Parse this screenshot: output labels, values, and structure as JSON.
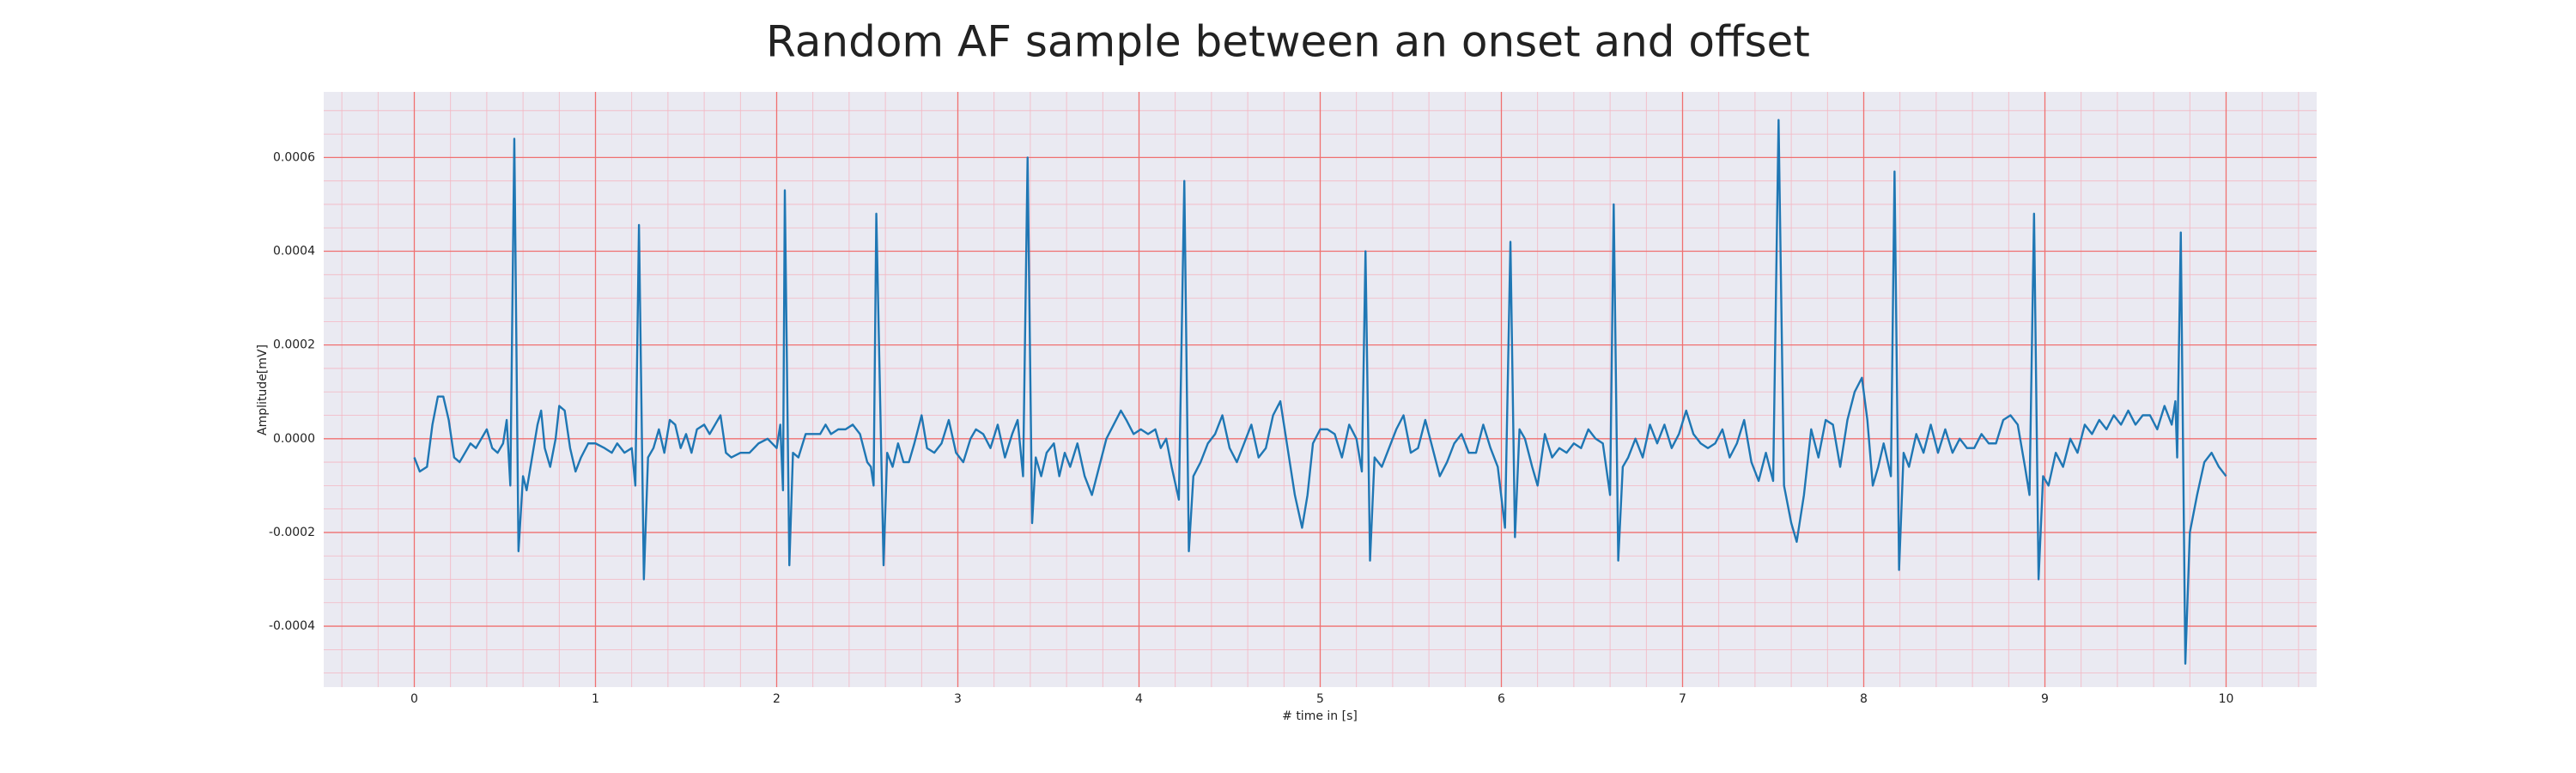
{
  "chart_data": {
    "type": "line",
    "title": "Random AF sample between an onset and offset",
    "xlabel": "# time in [s]",
    "ylabel": "Amplitude[mV]",
    "color": "#1f77b4",
    "grid": true,
    "minor_grid": true,
    "xlim": [
      -0.5,
      10.5
    ],
    "ylim": [
      -0.00053,
      0.00074
    ],
    "xticks": [
      0,
      1,
      2,
      3,
      4,
      5,
      6,
      7,
      8,
      9,
      10
    ],
    "yticks": [
      -0.0004,
      -0.0002,
      {
        "value": 0,
        "label": "0.0000"
      },
      0.0002,
      0.0004,
      0.0006
    ],
    "x": [
      0.0,
      0.03,
      0.07,
      0.1,
      0.13,
      0.16,
      0.19,
      0.22,
      0.25,
      0.28,
      0.31,
      0.34,
      0.37,
      0.4,
      0.43,
      0.46,
      0.49,
      0.51,
      0.53,
      0.552,
      0.575,
      0.6,
      0.62,
      0.65,
      0.68,
      0.7,
      0.72,
      0.75,
      0.78,
      0.8,
      0.83,
      0.86,
      0.89,
      0.92,
      0.96,
      1.0,
      1.05,
      1.09,
      1.12,
      1.16,
      1.2,
      1.22,
      1.24,
      1.267,
      1.29,
      1.32,
      1.35,
      1.38,
      1.41,
      1.44,
      1.47,
      1.5,
      1.53,
      1.56,
      1.6,
      1.63,
      1.66,
      1.69,
      1.72,
      1.75,
      1.8,
      1.85,
      1.9,
      1.95,
      2.0,
      2.02,
      2.035,
      2.045,
      2.07,
      2.09,
      2.12,
      2.16,
      2.2,
      2.24,
      2.27,
      2.3,
      2.34,
      2.38,
      2.42,
      2.46,
      2.5,
      2.52,
      2.535,
      2.55,
      2.59,
      2.61,
      2.64,
      2.67,
      2.7,
      2.73,
      2.76,
      2.8,
      2.83,
      2.87,
      2.91,
      2.95,
      2.99,
      3.03,
      3.07,
      3.1,
      3.14,
      3.18,
      3.22,
      3.26,
      3.3,
      3.33,
      3.36,
      3.385,
      3.41,
      3.43,
      3.46,
      3.49,
      3.53,
      3.56,
      3.59,
      3.62,
      3.66,
      3.7,
      3.74,
      3.78,
      3.82,
      3.86,
      3.9,
      3.93,
      3.97,
      4.01,
      4.05,
      4.09,
      4.12,
      4.15,
      4.18,
      4.22,
      4.25,
      4.275,
      4.3,
      4.34,
      4.38,
      4.42,
      4.46,
      4.5,
      4.54,
      4.58,
      4.62,
      4.66,
      4.7,
      4.74,
      4.78,
      4.82,
      4.86,
      4.9,
      4.93,
      4.96,
      5.0,
      5.04,
      5.08,
      5.12,
      5.16,
      5.2,
      5.23,
      5.25,
      5.275,
      5.3,
      5.34,
      5.38,
      5.42,
      5.46,
      5.5,
      5.54,
      5.58,
      5.62,
      5.66,
      5.7,
      5.74,
      5.78,
      5.82,
      5.86,
      5.9,
      5.94,
      5.98,
      6.02,
      6.05,
      6.075,
      6.1,
      6.13,
      6.17,
      6.2,
      6.24,
      6.28,
      6.32,
      6.36,
      6.4,
      6.44,
      6.48,
      6.52,
      6.56,
      6.6,
      6.62,
      6.645,
      6.67,
      6.7,
      6.74,
      6.78,
      6.82,
      6.86,
      6.9,
      6.94,
      6.98,
      7.02,
      7.06,
      7.1,
      7.14,
      7.18,
      7.22,
      7.26,
      7.3,
      7.34,
      7.38,
      7.42,
      7.46,
      7.5,
      7.53,
      7.56,
      7.6,
      7.63,
      7.67,
      7.71,
      7.75,
      7.79,
      7.83,
      7.87,
      7.91,
      7.95,
      7.99,
      8.02,
      8.05,
      8.08,
      8.11,
      8.15,
      8.17,
      8.195,
      8.22,
      8.25,
      8.29,
      8.33,
      8.37,
      8.41,
      8.45,
      8.49,
      8.53,
      8.57,
      8.61,
      8.65,
      8.69,
      8.73,
      8.77,
      8.81,
      8.85,
      8.89,
      8.915,
      8.94,
      8.965,
      8.99,
      9.02,
      9.06,
      9.1,
      9.14,
      9.18,
      9.22,
      9.26,
      9.3,
      9.34,
      9.38,
      9.42,
      9.46,
      9.5,
      9.54,
      9.58,
      9.62,
      9.66,
      9.7,
      9.72,
      9.73,
      9.75,
      9.775,
      9.8,
      9.84,
      9.88,
      9.92,
      9.96,
      10.0
    ],
    "values": [
      -4e-05,
      -7e-05,
      -6e-05,
      3e-05,
      9e-05,
      9e-05,
      4e-05,
      -4e-05,
      -5e-05,
      -3e-05,
      -1e-05,
      -2e-05,
      0.0,
      2e-05,
      -2e-05,
      -3e-05,
      -1e-05,
      4e-05,
      -0.0001,
      0.00064,
      -0.00024,
      -8e-05,
      -0.00011,
      -4e-05,
      3e-05,
      6e-05,
      -2e-05,
      -6e-05,
      0.0,
      7e-05,
      6e-05,
      -2e-05,
      -7e-05,
      -4e-05,
      -1e-05,
      -1e-05,
      -2e-05,
      -3e-05,
      -1e-05,
      -3e-05,
      -2e-05,
      -0.0001,
      0.000456,
      -0.0003,
      -4e-05,
      -2e-05,
      2e-05,
      -3e-05,
      4e-05,
      3e-05,
      -2e-05,
      1e-05,
      -3e-05,
      2e-05,
      3e-05,
      1e-05,
      3e-05,
      5e-05,
      -3e-05,
      -4e-05,
      -3e-05,
      -3e-05,
      -1e-05,
      0.0,
      -2e-05,
      3e-05,
      -0.00011,
      0.00053,
      -0.00027,
      -3e-05,
      -4e-05,
      1e-05,
      1e-05,
      1e-05,
      3e-05,
      1e-05,
      2e-05,
      2e-05,
      3e-05,
      1e-05,
      -5e-05,
      -6e-05,
      -0.0001,
      0.00048,
      -0.00027,
      -3e-05,
      -6e-05,
      -1e-05,
      -5e-05,
      -5e-05,
      -1e-05,
      5e-05,
      -2e-05,
      -3e-05,
      -1e-05,
      4e-05,
      -3e-05,
      -5e-05,
      0.0,
      2e-05,
      1e-05,
      -2e-05,
      3e-05,
      -4e-05,
      1e-05,
      4e-05,
      -8e-05,
      0.0006,
      -0.00018,
      -4e-05,
      -8e-05,
      -3e-05,
      -1e-05,
      -8e-05,
      -3e-05,
      -6e-05,
      -1e-05,
      -8e-05,
      -0.00012,
      -6e-05,
      0.0,
      3e-05,
      6e-05,
      4e-05,
      1e-05,
      2e-05,
      1e-05,
      2e-05,
      -2e-05,
      0.0,
      -6e-05,
      -0.00013,
      0.00055,
      -0.00024,
      -8e-05,
      -5e-05,
      -1e-05,
      1e-05,
      5e-05,
      -2e-05,
      -5e-05,
      -1e-05,
      3e-05,
      -4e-05,
      -2e-05,
      5e-05,
      8e-05,
      -2e-05,
      -0.00012,
      -0.00019,
      -0.00012,
      -1e-05,
      2e-05,
      2e-05,
      1e-05,
      -4e-05,
      3e-05,
      0.0,
      -7e-05,
      0.0004,
      -0.00026,
      -4e-05,
      -6e-05,
      -2e-05,
      2e-05,
      5e-05,
      -3e-05,
      -2e-05,
      4e-05,
      -2e-05,
      -8e-05,
      -5e-05,
      -1e-05,
      1e-05,
      -3e-05,
      -3e-05,
      3e-05,
      -2e-05,
      -6e-05,
      -0.00019,
      0.00042,
      -0.00021,
      2e-05,
      0.0,
      -6e-05,
      -0.0001,
      1e-05,
      -4e-05,
      -2e-05,
      -3e-05,
      -1e-05,
      -2e-05,
      2e-05,
      0.0,
      -1e-05,
      -0.00012,
      0.0005,
      -0.00026,
      -6e-05,
      -4e-05,
      0.0,
      -4e-05,
      3e-05,
      -1e-05,
      3e-05,
      -2e-05,
      1e-05,
      6e-05,
      1e-05,
      -1e-05,
      -2e-05,
      -1e-05,
      2e-05,
      -4e-05,
      -1e-05,
      4e-05,
      -5e-05,
      -9e-05,
      -3e-05,
      -9e-05,
      0.00068,
      -0.0001,
      -0.00018,
      -0.00022,
      -0.00012,
      2e-05,
      -4e-05,
      4e-05,
      3e-05,
      -6e-05,
      4e-05,
      0.0001,
      0.00013,
      4e-05,
      -0.0001,
      -6e-05,
      -1e-05,
      -8e-05,
      0.00057,
      -0.00028,
      -3e-05,
      -6e-05,
      1e-05,
      -3e-05,
      3e-05,
      -3e-05,
      2e-05,
      -3e-05,
      0.0,
      -2e-05,
      -2e-05,
      1e-05,
      -1e-05,
      -1e-05,
      4e-05,
      5e-05,
      3e-05,
      -6e-05,
      -0.00012,
      0.00048,
      -0.0003,
      -8e-05,
      -0.0001,
      -3e-05,
      -6e-05,
      0.0,
      -3e-05,
      3e-05,
      1e-05,
      4e-05,
      2e-05,
      5e-05,
      3e-05,
      6e-05,
      3e-05,
      5e-05,
      5e-05,
      2e-05,
      7e-05,
      3e-05,
      8e-05,
      -4e-05,
      0.00044,
      -0.00048,
      -0.0002,
      -0.00012,
      -5e-05,
      -3e-05,
      -6e-05,
      -8e-05
    ]
  }
}
